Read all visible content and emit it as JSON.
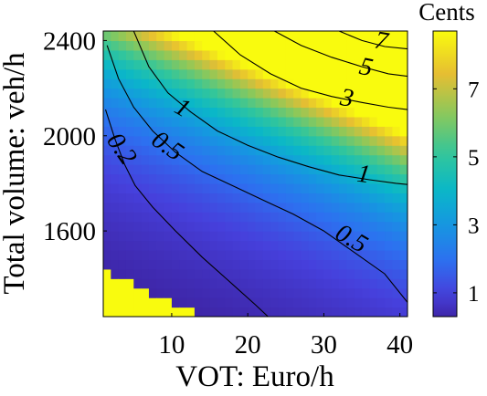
{
  "chart_data": {
    "type": "heatmap",
    "title": "",
    "xlabel": "VOT: Euro/h",
    "ylabel": "Total volume: veh/h",
    "xlim": [
      1,
      41
    ],
    "ylim": [
      1240,
      2440
    ],
    "x_ticks": [
      10,
      20,
      30,
      40
    ],
    "y_ticks": [
      1600,
      2000,
      2400
    ],
    "colorbar": {
      "title": "Cents",
      "range": [
        0.3,
        8.7
      ],
      "ticks": [
        1,
        3,
        5,
        7
      ],
      "colormap": "parula"
    },
    "grid": {
      "x_start": 1,
      "x_end": 41,
      "x_step": 1,
      "y_start": 1240,
      "y_end": 2440,
      "y_step": 40,
      "base": 0.5,
      "growth_x": 0.041,
      "growth_y": 0.00298,
      "vmin": 0.3,
      "vmax": 8.7
    },
    "contours": [
      {
        "level": 0.2,
        "x": [
          1.3,
          2.5,
          3.8,
          5.2,
          7.5,
          10.5,
          14,
          17.5,
          21,
          23
        ],
        "y": [
          2110,
          1990,
          1880,
          1790,
          1700,
          1600,
          1490,
          1390,
          1290,
          1230
        ]
      },
      {
        "level": 0.5,
        "x": [
          1.5,
          3,
          5,
          7.5,
          10.5,
          14,
          18,
          22,
          26,
          30,
          34,
          38,
          41
        ],
        "y": [
          2380,
          2240,
          2120,
          2020,
          1930,
          1850,
          1790,
          1730,
          1670,
          1600,
          1510,
          1420,
          1300
        ]
      },
      {
        "level": 1,
        "x": [
          5,
          7,
          9.5,
          12.5,
          16,
          20,
          24,
          28,
          32,
          36,
          39.5,
          41
        ],
        "y": [
          2440,
          2290,
          2180,
          2100,
          2020,
          1960,
          1910,
          1870,
          1835,
          1815,
          1800,
          1795
        ]
      },
      {
        "level": 3,
        "x": [
          15.5,
          19,
          23,
          27,
          31,
          35,
          38.5,
          41
        ],
        "y": [
          2440,
          2340,
          2260,
          2200,
          2165,
          2140,
          2120,
          2110
        ]
      },
      {
        "level": 5,
        "x": [
          23.5,
          27,
          31,
          35,
          38.5,
          41
        ],
        "y": [
          2440,
          2380,
          2330,
          2290,
          2260,
          2250
        ]
      },
      {
        "level": 7,
        "x": [
          32,
          35,
          38,
          41
        ],
        "y": [
          2440,
          2400,
          2375,
          2365
        ]
      }
    ],
    "contour_labels": [
      {
        "text": "0.2",
        "x": 3.2,
        "y": 1940,
        "rotation": 55
      },
      {
        "text": "0.5",
        "x": 9.3,
        "y": 1950,
        "rotation": 35
      },
      {
        "text": "1",
        "x": 11.3,
        "y": 2110,
        "rotation": 30
      },
      {
        "text": "3",
        "x": 33,
        "y": 2150,
        "rotation": 10
      },
      {
        "text": "5",
        "x": 35.5,
        "y": 2280,
        "rotation": 12
      },
      {
        "text": "7",
        "x": 37.5,
        "y": 2390,
        "rotation": 10
      },
      {
        "text": "1",
        "x": 35.2,
        "y": 1830,
        "rotation": 8
      },
      {
        "text": "0.5",
        "x": 33.5,
        "y": 1560,
        "rotation": 30
      }
    ]
  }
}
